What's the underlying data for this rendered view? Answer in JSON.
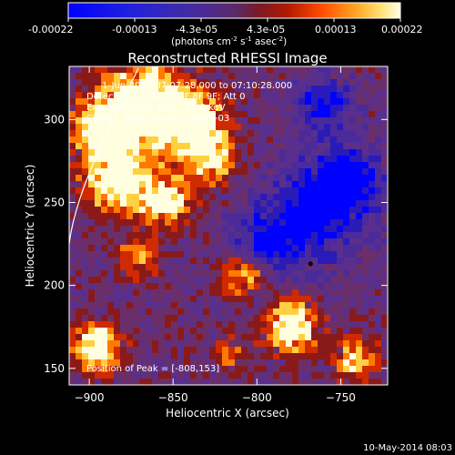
{
  "colorbar": {
    "ticks": [
      "-0.00022",
      "-0.00013",
      "-4.3e-05",
      "4.3e-05",
      "0.00013",
      "0.00022"
    ],
    "unit_main": "(photons cm",
    "unit_sup1": "-2",
    "unit_mid": " s",
    "unit_sup2": "-1",
    "unit_end": " asec",
    "unit_sup3": "-2",
    "unit_close": ")"
  },
  "chart_data": {
    "type": "heatmap",
    "title": "Reconstructed RHESSI Image",
    "xlabel": "Heliocentric X (arcsec)",
    "ylabel": "Heliocentric Y (arcsec)",
    "xlim": [
      -912,
      -722
    ],
    "ylim": [
      140,
      332
    ],
    "xticks": [
      -900,
      -850,
      -800,
      -750
    ],
    "yticks": [
      150,
      200,
      250,
      300
    ],
    "value_range": [
      -0.00022,
      0.00022
    ],
    "colormap": [
      "#0000ff",
      "#2a1bb8",
      "#4b2a9a",
      "#5a2f8c",
      "#6a2f6a",
      "#8a1a1a",
      "#d02a00",
      "#ff7a00",
      "#ffd040",
      "#ffffe0"
    ],
    "peak_position": [
      -808,
      153
    ],
    "info_lines": [
      "1-Jun-2012 07:07:28.000 to 07:10:28.000",
      "Detectors: 3F 5F 6F 7F 8F 9F; Att 0",
      "Energy Range: 12.0 - 25.0 keV",
      "Clean    Total counts: 2.08E+03"
    ],
    "peak_text": "Position of Peak = [-808,153]"
  },
  "timestamp": "10-May-2014 08:03"
}
